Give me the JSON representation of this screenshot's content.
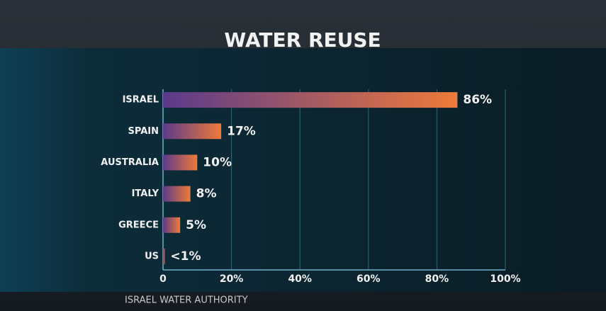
{
  "chart_data": {
    "type": "bar",
    "orientation": "horizontal",
    "title": "WATER REUSE",
    "source": "ISRAEL WATER AUTHORITY",
    "categories": [
      "ISRAEL",
      "SPAIN",
      "AUSTRALIA",
      "ITALY",
      "GREECE",
      "US"
    ],
    "values": [
      86,
      17,
      10,
      8,
      5,
      0.5
    ],
    "value_labels": [
      "86%",
      "17%",
      "10%",
      "8%",
      "5%",
      "<1%"
    ],
    "color_start": "#5a3a8c",
    "color_end": "#ef7a3a",
    "xlim": [
      0,
      100
    ],
    "xticks": [
      0,
      {
        "value": 20,
        "label": "20%"
      },
      {
        "value": 40,
        "label": "40%"
      },
      {
        "value": 60,
        "label": "60%"
      },
      {
        "value": 80,
        "label": "80%"
      },
      {
        "value": 100,
        "label": "100%"
      }
    ],
    "grid": true
  }
}
